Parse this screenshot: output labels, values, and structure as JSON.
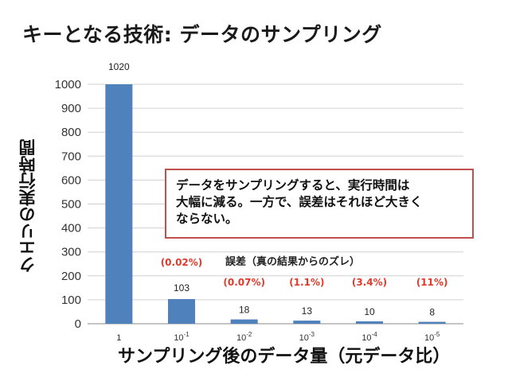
{
  "title": "キーとなる技術: データのサンプリング",
  "callout": {
    "lines": [
      "データをサンプリングすると、実行時間は",
      "大幅に減る。一方で、誤差はそれほど大きく",
      "ならない。"
    ]
  },
  "error_title": "誤差（真の結果からのズレ）",
  "colors": {
    "bar": "#4f81bd",
    "error": "#e23a2a",
    "callout_border": "#c0504d",
    "grid": "#d0d0d0"
  },
  "chart_data": {
    "type": "bar",
    "title": "",
    "xlabel": "サンプリング後のデータ量（元データ比）",
    "ylabel": "クエリの実行時間",
    "categories": [
      {
        "base": "1",
        "exp": ""
      },
      {
        "base": "10",
        "exp": "-1"
      },
      {
        "base": "10",
        "exp": "-2"
      },
      {
        "base": "10",
        "exp": "-3"
      },
      {
        "base": "10",
        "exp": "-4"
      },
      {
        "base": "10",
        "exp": "-5"
      }
    ],
    "values": [
      1020,
      103,
      18,
      13,
      10,
      8
    ],
    "data_labels": [
      "1020",
      "103",
      "18",
      "13",
      "10",
      "8"
    ],
    "error_labels": [
      "",
      "(0.02%)",
      "(0.07%)",
      "(1.1%)",
      "(3.4%)",
      "(11%)"
    ],
    "ylim": [
      0,
      1000
    ],
    "yticks": [
      0,
      100,
      200,
      300,
      400,
      500,
      600,
      700,
      800,
      900,
      1000
    ],
    "grid": true,
    "legend": "none"
  }
}
